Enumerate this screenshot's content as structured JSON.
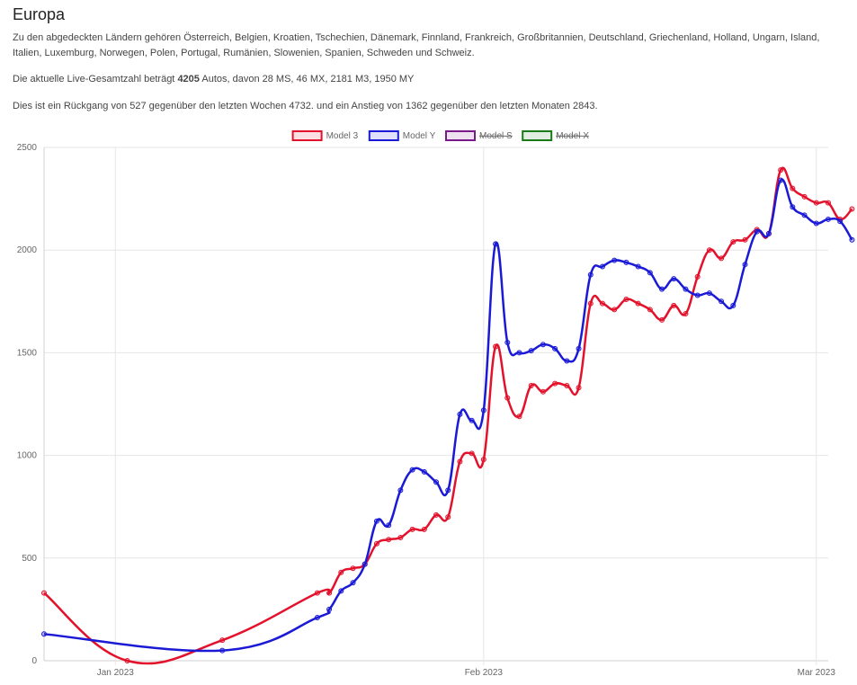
{
  "page": {
    "title": "Europa",
    "countries_text": "Zu den abgedeckten Ländern gehören Österreich, Belgien, Kroatien, Tschechien, Dänemark, Finnland, Frankreich, Großbritannien, Deutschland, Griechenland, Holland, Ungarn, Island, Italien, Luxemburg, Norwegen, Polen, Portugal, Rumänien, Slowenien, Spanien, Schweden und Schweiz.",
    "live_prefix": "Die aktuelle Live-Gesamtzahl beträgt ",
    "live_total": "4205",
    "live_suffix": " Autos, davon 28 MS, 46 MX, 2181 M3, 1950 MY",
    "change_text": "Dies ist ein Rückgang von 527 gegenüber den letzten Wochen 4732. und ein Anstieg von 1362 gegenüber den letzten Monaten 2843."
  },
  "chart_data": {
    "type": "line",
    "x_axis": {
      "type": "date",
      "min": "2022-12-26",
      "max": "2023-03-02",
      "ticks": [
        "Jan 2023",
        "Feb 2023",
        "Mar 2023"
      ],
      "tick_dates": [
        "2023-01-01",
        "2023-02-01",
        "2023-03-01"
      ]
    },
    "y_axis": {
      "min": 0,
      "max": 2500,
      "step": 500,
      "ticks": [
        "0",
        "500",
        "1000",
        "1500",
        "2000",
        "2500"
      ]
    },
    "grid": true,
    "legend_position": "top",
    "series": [
      {
        "name": "Model 3",
        "color": "#e3122c",
        "hidden": false,
        "points": [
          [
            "2022-12-26",
            330
          ],
          [
            "2023-01-02",
            0
          ],
          [
            "2023-01-10",
            100
          ],
          [
            "2023-01-18",
            330
          ],
          [
            "2023-01-19",
            330
          ],
          [
            "2023-01-20",
            430
          ],
          [
            "2023-01-21",
            450
          ],
          [
            "2023-01-22",
            470
          ],
          [
            "2023-01-23",
            570
          ],
          [
            "2023-01-24",
            590
          ],
          [
            "2023-01-25",
            600
          ],
          [
            "2023-01-26",
            640
          ],
          [
            "2023-01-27",
            640
          ],
          [
            "2023-01-28",
            710
          ],
          [
            "2023-01-29",
            700
          ],
          [
            "2023-01-30",
            970
          ],
          [
            "2023-01-31",
            1010
          ],
          [
            "2023-02-01",
            980
          ],
          [
            "2023-02-02",
            1530
          ],
          [
            "2023-02-03",
            1280
          ],
          [
            "2023-02-04",
            1190
          ],
          [
            "2023-02-05",
            1340
          ],
          [
            "2023-02-06",
            1310
          ],
          [
            "2023-02-07",
            1350
          ],
          [
            "2023-02-08",
            1340
          ],
          [
            "2023-02-09",
            1330
          ],
          [
            "2023-02-10",
            1740
          ],
          [
            "2023-02-11",
            1740
          ],
          [
            "2023-02-12",
            1710
          ],
          [
            "2023-02-13",
            1760
          ],
          [
            "2023-02-14",
            1740
          ],
          [
            "2023-02-15",
            1710
          ],
          [
            "2023-02-16",
            1660
          ],
          [
            "2023-02-17",
            1730
          ],
          [
            "2023-02-18",
            1690
          ],
          [
            "2023-02-19",
            1870
          ],
          [
            "2023-02-20",
            2000
          ],
          [
            "2023-02-21",
            1960
          ],
          [
            "2023-02-22",
            2040
          ],
          [
            "2023-02-23",
            2050
          ],
          [
            "2023-02-24",
            2100
          ],
          [
            "2023-02-25",
            2080
          ],
          [
            "2023-02-26",
            2390
          ],
          [
            "2023-02-27",
            2300
          ],
          [
            "2023-02-28",
            2260
          ],
          [
            "2023-03-01",
            2230
          ],
          [
            "2023-03-02",
            2230
          ],
          [
            "2023-03-03",
            2150
          ],
          [
            "2023-03-04",
            2200
          ]
        ]
      },
      {
        "name": "Model Y",
        "color": "#1a1ad6",
        "hidden": false,
        "points": [
          [
            "2022-12-26",
            130
          ],
          [
            "2023-01-10",
            50
          ],
          [
            "2023-01-18",
            210
          ],
          [
            "2023-01-19",
            250
          ],
          [
            "2023-01-20",
            340
          ],
          [
            "2023-01-21",
            380
          ],
          [
            "2023-01-22",
            470
          ],
          [
            "2023-01-23",
            680
          ],
          [
            "2023-01-24",
            660
          ],
          [
            "2023-01-25",
            830
          ],
          [
            "2023-01-26",
            930
          ],
          [
            "2023-01-27",
            920
          ],
          [
            "2023-01-28",
            870
          ],
          [
            "2023-01-29",
            830
          ],
          [
            "2023-01-30",
            1200
          ],
          [
            "2023-01-31",
            1170
          ],
          [
            "2023-02-01",
            1220
          ],
          [
            "2023-02-02",
            2030
          ],
          [
            "2023-02-03",
            1550
          ],
          [
            "2023-02-04",
            1500
          ],
          [
            "2023-02-05",
            1510
          ],
          [
            "2023-02-06",
            1540
          ],
          [
            "2023-02-07",
            1520
          ],
          [
            "2023-02-08",
            1460
          ],
          [
            "2023-02-09",
            1520
          ],
          [
            "2023-02-10",
            1880
          ],
          [
            "2023-02-11",
            1920
          ],
          [
            "2023-02-12",
            1950
          ],
          [
            "2023-02-13",
            1940
          ],
          [
            "2023-02-14",
            1920
          ],
          [
            "2023-02-15",
            1890
          ],
          [
            "2023-02-16",
            1810
          ],
          [
            "2023-02-17",
            1860
          ],
          [
            "2023-02-18",
            1810
          ],
          [
            "2023-02-19",
            1780
          ],
          [
            "2023-02-20",
            1790
          ],
          [
            "2023-02-21",
            1750
          ],
          [
            "2023-02-22",
            1730
          ],
          [
            "2023-02-23",
            1930
          ],
          [
            "2023-02-24",
            2090
          ],
          [
            "2023-02-25",
            2080
          ],
          [
            "2023-02-26",
            2340
          ],
          [
            "2023-02-27",
            2210
          ],
          [
            "2023-02-28",
            2170
          ],
          [
            "2023-03-01",
            2130
          ],
          [
            "2023-03-02",
            2150
          ],
          [
            "2023-03-03",
            2140
          ],
          [
            "2023-03-04",
            2050
          ]
        ]
      },
      {
        "name": "Model S",
        "color": "#7a1a8a",
        "hidden": true,
        "points": []
      },
      {
        "name": "Model X",
        "color": "#1a7a1a",
        "hidden": true,
        "points": []
      }
    ]
  }
}
